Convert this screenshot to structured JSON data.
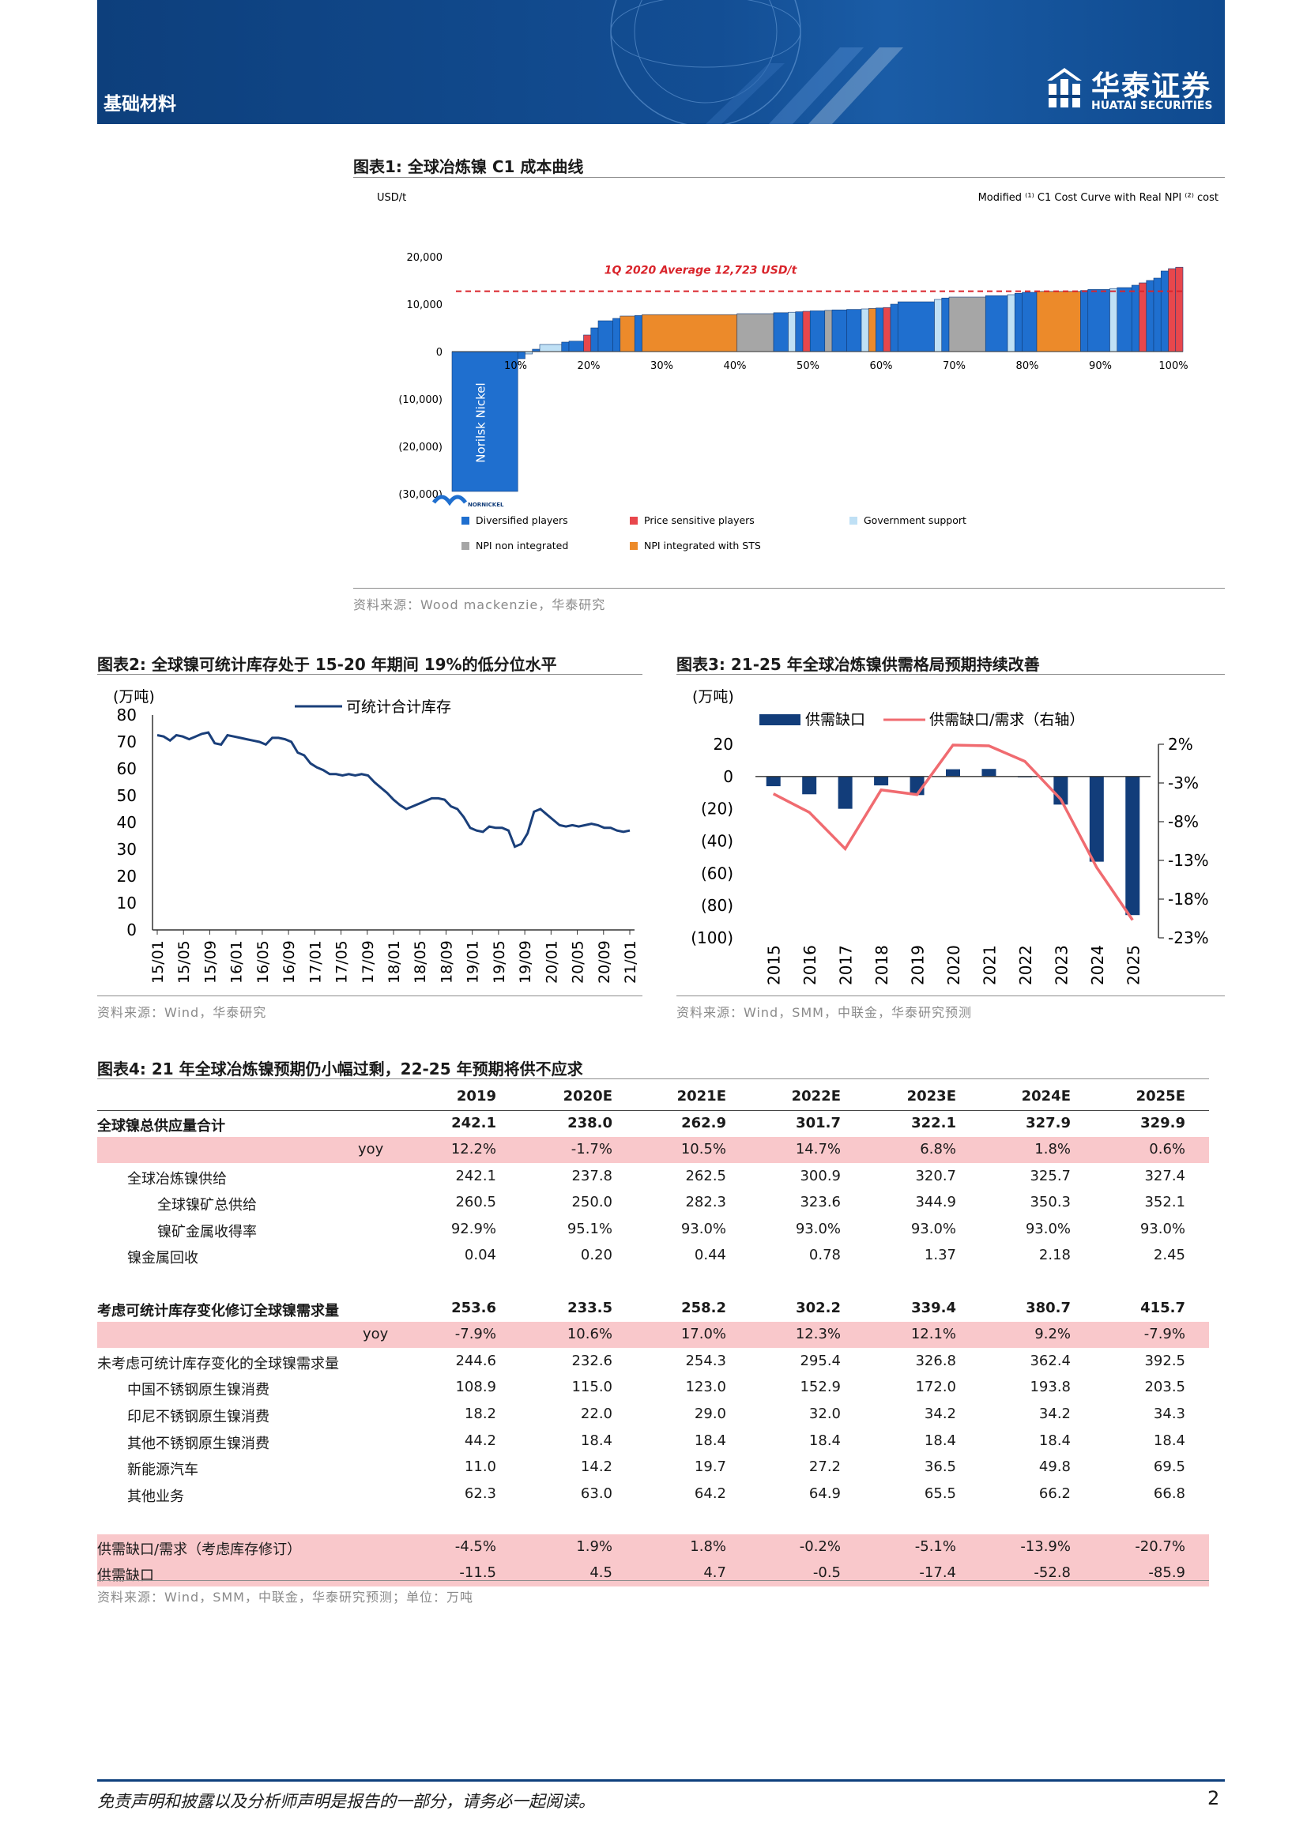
{
  "header": {
    "sector": "基础材料",
    "brand_cn": "华泰证券",
    "brand_en": "HUATAI SECURITIES",
    "brand_color": "#0d3f7c"
  },
  "fig1": {
    "title": "图表1:  全球冶炼镍 C1 成本曲线",
    "source": "资料来源：Wood mackenzie，华泰研究",
    "chart_data": {
      "type": "bar",
      "title": "Modified ⁽¹⁾ C1 Cost Curve with Real NPI ⁽²⁾ cost",
      "ylabel": "USD/t",
      "ylim": [
        -30000,
        20000
      ],
      "yticks": [
        "20,000",
        "10,000",
        "0",
        "(10,000)",
        "(20,000)",
        "(30,000)"
      ],
      "xticks": [
        "10%",
        "20%",
        "30%",
        "40%",
        "50%",
        "60%",
        "70%",
        "80%",
        "90%",
        "100%"
      ],
      "average_label": "1Q 2020 Average 12,723 USD/t",
      "average_value": 12723,
      "bar_annotation": "Norilsk Nickel",
      "company_logo_text": "NORNICKEL",
      "legend": [
        {
          "label": "Diversified players",
          "color": "#1f6fcf"
        },
        {
          "label": "Price sensitive players",
          "color": "#e8474c"
        },
        {
          "label": "Government support",
          "color": "#bfe0f5"
        },
        {
          "label": "NPI non integrated",
          "color": "#a6a6a6"
        },
        {
          "label": "NPI integrated with STS",
          "color": "#ec8a2a"
        }
      ],
      "segments": [
        {
          "x0": 0,
          "x1": 9,
          "y": -29500,
          "cat": "Diversified players"
        },
        {
          "x0": 9,
          "x1": 10,
          "y": -1500,
          "cat": "Diversified players"
        },
        {
          "x0": 10,
          "x1": 11,
          "y": -500,
          "cat": "Government support"
        },
        {
          "x0": 11,
          "x1": 12,
          "y": 500,
          "cat": "Diversified players"
        },
        {
          "x0": 12,
          "x1": 15,
          "y": 1500,
          "cat": "Government support"
        },
        {
          "x0": 15,
          "x1": 16,
          "y": 2000,
          "cat": "Diversified players"
        },
        {
          "x0": 16,
          "x1": 18,
          "y": 2200,
          "cat": "Diversified players"
        },
        {
          "x0": 18,
          "x1": 19,
          "y": 3500,
          "cat": "Price sensitive players"
        },
        {
          "x0": 19,
          "x1": 20,
          "y": 5000,
          "cat": "Diversified players"
        },
        {
          "x0": 20,
          "x1": 22,
          "y": 6500,
          "cat": "Diversified players"
        },
        {
          "x0": 22,
          "x1": 23,
          "y": 7000,
          "cat": "Diversified players"
        },
        {
          "x0": 23,
          "x1": 25,
          "y": 7500,
          "cat": "NPI integrated with STS"
        },
        {
          "x0": 25,
          "x1": 26,
          "y": 7600,
          "cat": "Diversified players"
        },
        {
          "x0": 26,
          "x1": 39,
          "y": 7800,
          "cat": "NPI integrated with STS"
        },
        {
          "x0": 39,
          "x1": 44,
          "y": 8000,
          "cat": "NPI non integrated"
        },
        {
          "x0": 44,
          "x1": 46,
          "y": 8200,
          "cat": "Diversified players"
        },
        {
          "x0": 46,
          "x1": 47,
          "y": 8300,
          "cat": "Government support"
        },
        {
          "x0": 47,
          "x1": 48,
          "y": 8400,
          "cat": "Diversified players"
        },
        {
          "x0": 48,
          "x1": 49,
          "y": 8500,
          "cat": "Price sensitive players"
        },
        {
          "x0": 49,
          "x1": 51,
          "y": 8600,
          "cat": "Diversified players"
        },
        {
          "x0": 51,
          "x1": 52,
          "y": 8700,
          "cat": "NPI non integrated"
        },
        {
          "x0": 52,
          "x1": 54,
          "y": 8800,
          "cat": "Diversified players"
        },
        {
          "x0": 54,
          "x1": 56,
          "y": 8900,
          "cat": "Diversified players"
        },
        {
          "x0": 56,
          "x1": 57,
          "y": 9000,
          "cat": "Government support"
        },
        {
          "x0": 57,
          "x1": 58,
          "y": 9100,
          "cat": "NPI integrated with STS"
        },
        {
          "x0": 58,
          "x1": 59,
          "y": 9200,
          "cat": "Diversified players"
        },
        {
          "x0": 59,
          "x1": 60,
          "y": 9300,
          "cat": "Price sensitive players"
        },
        {
          "x0": 60,
          "x1": 61,
          "y": 10000,
          "cat": "Diversified players"
        },
        {
          "x0": 61,
          "x1": 66,
          "y": 10500,
          "cat": "Diversified players"
        },
        {
          "x0": 66,
          "x1": 67,
          "y": 11000,
          "cat": "Government support"
        },
        {
          "x0": 67,
          "x1": 68,
          "y": 11300,
          "cat": "Diversified players"
        },
        {
          "x0": 68,
          "x1": 73,
          "y": 11500,
          "cat": "NPI non integrated"
        },
        {
          "x0": 73,
          "x1": 76,
          "y": 11800,
          "cat": "Diversified players"
        },
        {
          "x0": 76,
          "x1": 77,
          "y": 12000,
          "cat": "Government support"
        },
        {
          "x0": 77,
          "x1": 78,
          "y": 12300,
          "cat": "Diversified players"
        },
        {
          "x0": 78,
          "x1": 80,
          "y": 12500,
          "cat": "Diversified players"
        },
        {
          "x0": 80,
          "x1": 86,
          "y": 12700,
          "cat": "NPI integrated with STS"
        },
        {
          "x0": 86,
          "x1": 87,
          "y": 12900,
          "cat": "Diversified players"
        },
        {
          "x0": 87,
          "x1": 90,
          "y": 13100,
          "cat": "Diversified players"
        },
        {
          "x0": 90,
          "x1": 91,
          "y": 13300,
          "cat": "Government support"
        },
        {
          "x0": 91,
          "x1": 93,
          "y": 13500,
          "cat": "Diversified players"
        },
        {
          "x0": 93,
          "x1": 94,
          "y": 14000,
          "cat": "Diversified players"
        },
        {
          "x0": 94,
          "x1": 95,
          "y": 14500,
          "cat": "Price sensitive players"
        },
        {
          "x0": 95,
          "x1": 96,
          "y": 15000,
          "cat": "Diversified players"
        },
        {
          "x0": 96,
          "x1": 97,
          "y": 15500,
          "cat": "Diversified players"
        },
        {
          "x0": 97,
          "x1": 98,
          "y": 17000,
          "cat": "Diversified players"
        },
        {
          "x0": 98,
          "x1": 99,
          "y": 17500,
          "cat": "Price sensitive players"
        },
        {
          "x0": 99,
          "x1": 100,
          "y": 17800,
          "cat": "Price sensitive players"
        }
      ]
    }
  },
  "fig2": {
    "title": "图表2:  全球镍可统计库存处于 15-20 年期间 19%的低分位水平",
    "source": "资料来源：Wind，华泰研究",
    "chart_data": {
      "type": "line",
      "unit_label": "(万吨)",
      "ylim": [
        0,
        80
      ],
      "yticks": [
        "80",
        "70",
        "60",
        "50",
        "40",
        "30",
        "20",
        "10",
        "0"
      ],
      "xticks": [
        "15/01",
        "15/05",
        "15/09",
        "16/01",
        "16/05",
        "16/09",
        "17/01",
        "17/05",
        "17/09",
        "18/01",
        "18/05",
        "18/09",
        "19/01",
        "19/05",
        "19/09",
        "20/01",
        "20/05",
        "20/09",
        "21/01"
      ],
      "series": [
        {
          "name": "可统计合计库存",
          "color": "#1a3f7a",
          "values": [
            72.5,
            72,
            70.5,
            72.5,
            72,
            71,
            72,
            73,
            73.5,
            69.5,
            69,
            72.5,
            72,
            71.5,
            71,
            70.5,
            70,
            69,
            71.5,
            71.5,
            71,
            70,
            66,
            65,
            62,
            60.5,
            59.5,
            58,
            58,
            57.5,
            58,
            57.5,
            58,
            57.5,
            55,
            53,
            51,
            48.5,
            46.5,
            45,
            46,
            47,
            48,
            49,
            49,
            48.5,
            46,
            45,
            42,
            38,
            37,
            36.5,
            38.5,
            38,
            38,
            37,
            31,
            32,
            36,
            44,
            45,
            43,
            41,
            39,
            38.5,
            39,
            38.5,
            39,
            39.5,
            39,
            38,
            38,
            37,
            36.5,
            37
          ]
        }
      ]
    }
  },
  "fig3": {
    "title": "图表3:  21-25 年全球冶炼镍供需格局预期持续改善",
    "source": "资料来源：Wind，SMM，中联金，华泰研究预测",
    "chart_data": {
      "type": "bar",
      "unit_label": "(万吨)",
      "categories": [
        "2015",
        "2016",
        "2017",
        "2018",
        "2019",
        "2020",
        "2021",
        "2022",
        "2023",
        "2024",
        "2025"
      ],
      "ylim": [
        -100,
        20
      ],
      "yticks_left": [
        "20",
        "0",
        "(20)",
        "(40)",
        "(60)",
        "(80)",
        "(100)"
      ],
      "yticks_right": [
        "2%",
        "-3%",
        "-8%",
        "-13%",
        "-18%",
        "-23%"
      ],
      "y2lim": [
        -23,
        2
      ],
      "series": [
        {
          "name": "供需缺口",
          "type": "bar",
          "color": "#123d7a",
          "values": [
            -6,
            -11,
            -20,
            -5.5,
            -11.5,
            4.5,
            4.7,
            -0.5,
            -17.4,
            -52.8,
            -85.9
          ]
        },
        {
          "name": "供需缺口/需求（右轴）",
          "type": "line",
          "color": "#f06b70",
          "values": [
            -4.4,
            -6.8,
            -11.5,
            -3.9,
            -4.5,
            1.9,
            1.8,
            -0.2,
            -5.1,
            -13.9,
            -20.7
          ]
        }
      ]
    }
  },
  "fig4": {
    "title": "图表4:  21 年全球冶炼镍预期仍小幅过剩，22-25 年预期将供不应求",
    "source": "资料来源：Wind，SMM，中联金，华泰研究预测；单位：万吨",
    "columns": [
      "2019",
      "2020E",
      "2021E",
      "2022E",
      "2023E",
      "2024E",
      "2025E"
    ],
    "rows": [
      {
        "label": "全球镍总供应量合计",
        "values": [
          "242.1",
          "238.0",
          "262.9",
          "301.7",
          "322.1",
          "327.9",
          "329.9"
        ],
        "bold": true,
        "indent": 0
      },
      {
        "label": "yoy",
        "values": [
          "12.2%",
          "-1.7%",
          "10.5%",
          "14.7%",
          "6.8%",
          "1.8%",
          "0.6%"
        ],
        "pink": true,
        "indent": 330
      },
      {
        "label": "全球冶炼镍供给",
        "values": [
          "242.1",
          "237.8",
          "262.5",
          "300.9",
          "320.7",
          "325.7",
          "327.4"
        ],
        "indent": 38
      },
      {
        "label": "全球镍矿总供给",
        "values": [
          "260.5",
          "250.0",
          "282.3",
          "323.6",
          "344.9",
          "350.3",
          "352.1"
        ],
        "indent": 76
      },
      {
        "label": "镍矿金属收得率",
        "values": [
          "92.9%",
          "95.1%",
          "93.0%",
          "93.0%",
          "93.0%",
          "93.0%",
          "93.0%"
        ],
        "indent": 76
      },
      {
        "label": "镍金属回收",
        "values": [
          "0.04",
          "0.20",
          "0.44",
          "0.78",
          "1.37",
          "2.18",
          "2.45"
        ],
        "indent": 38
      },
      {
        "label": "考虑可统计库存变化修订全球镍需求量",
        "values": [
          "253.6",
          "233.5",
          "258.2",
          "302.2",
          "339.4",
          "380.7",
          "415.7"
        ],
        "bold": true,
        "indent": 0
      },
      {
        "label": "yoy",
        "values": [
          "-7.9%",
          "10.6%",
          "17.0%",
          "12.3%",
          "12.1%",
          "9.2%",
          "-7.9%"
        ],
        "pink": true,
        "indent": 336
      },
      {
        "label": "未考虑可统计库存变化的全球镍需求量",
        "values": [
          "244.6",
          "232.6",
          "254.3",
          "295.4",
          "326.8",
          "362.4",
          "392.5"
        ],
        "indent": 0
      },
      {
        "label": "中国不锈钢原生镍消费",
        "values": [
          "108.9",
          "115.0",
          "123.0",
          "152.9",
          "172.0",
          "193.8",
          "203.5"
        ],
        "indent": 38
      },
      {
        "label": "印尼不锈钢原生镍消费",
        "values": [
          "18.2",
          "22.0",
          "29.0",
          "32.0",
          "34.2",
          "34.2",
          "34.3"
        ],
        "indent": 38
      },
      {
        "label": "其他不锈钢原生镍消费",
        "values": [
          "44.2",
          "18.4",
          "18.4",
          "18.4",
          "18.4",
          "18.4",
          "18.4"
        ],
        "indent": 38
      },
      {
        "label": "新能源汽车",
        "values": [
          "11.0",
          "14.2",
          "19.7",
          "27.2",
          "36.5",
          "49.8",
          "69.5"
        ],
        "indent": 38
      },
      {
        "label": "其他业务",
        "values": [
          "62.3",
          "63.0",
          "64.2",
          "64.9",
          "65.5",
          "66.2",
          "66.8"
        ],
        "indent": 38
      },
      {
        "label": "供需缺口/需求（考虑库存修订）",
        "values": [
          "-4.5%",
          "1.9%",
          "1.8%",
          "-0.2%",
          "-5.1%",
          "-13.9%",
          "-20.7%"
        ],
        "pink": true,
        "indent": 0
      },
      {
        "label": "供需缺口",
        "values": [
          "-11.5",
          "4.5",
          "4.7",
          "-0.5",
          "-17.4",
          "-52.8",
          "-85.9"
        ],
        "pink": true,
        "indent": 0
      }
    ]
  },
  "footer": {
    "disclaimer": "免责声明和披露以及分析师声明是报告的一部分，请务必一起阅读。",
    "page": "2"
  }
}
